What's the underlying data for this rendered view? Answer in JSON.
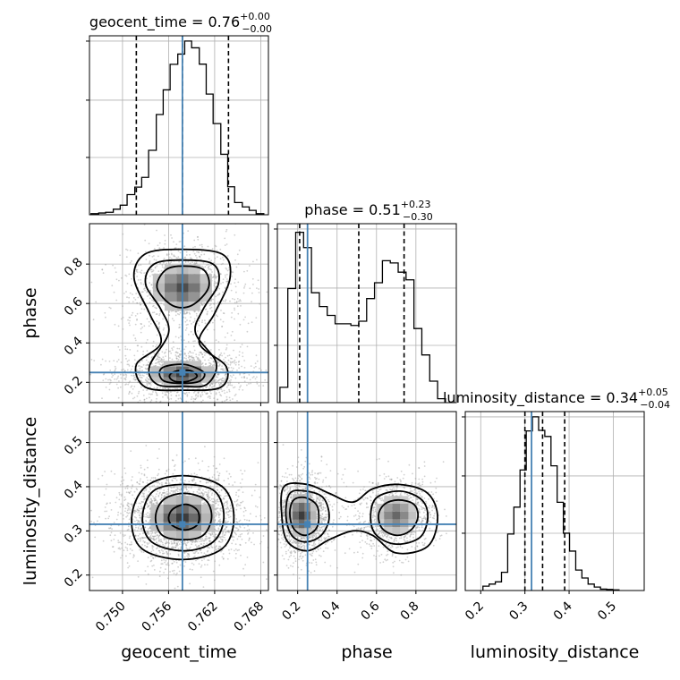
{
  "chart_data": {
    "type": "corner",
    "parameters": [
      "geocent_time",
      "phase",
      "luminosity_distance"
    ],
    "axis_labels": {
      "geocent_time": "geocent_time",
      "phase": "phase",
      "luminosity_distance": "luminosity_distance"
    },
    "ranges": {
      "geocent_time": [
        0.7457,
        0.769
      ],
      "phase": [
        0.097,
        1.005
      ],
      "luminosity_distance": [
        0.165,
        0.57
      ]
    },
    "ticks": {
      "geocent_time": [
        0.75,
        0.756,
        0.762,
        0.768
      ],
      "phase": [
        0.2,
        0.4,
        0.6,
        0.8
      ],
      "luminosity_distance": [
        0.2,
        0.3,
        0.4,
        0.5
      ]
    },
    "tick_labels": {
      "geocent_time": [
        "0.750",
        "0.756",
        "0.762",
        "0.768"
      ],
      "phase": [
        "0.2",
        "0.4",
        "0.6",
        "0.8"
      ],
      "luminosity_distance": [
        "0.2",
        "0.3",
        "0.4",
        "0.5"
      ]
    },
    "truths": {
      "geocent_time": 0.7578,
      "phase": 0.25,
      "luminosity_distance": 0.315
    },
    "titles": [
      {
        "name": "geocent_time",
        "median": "0.76",
        "plus": "+0.00",
        "minus": "−0.00"
      },
      {
        "name": "phase",
        "median": "0.51",
        "plus": "+0.23",
        "minus": "−0.30"
      },
      {
        "name": "luminosity_distance",
        "median": "0.34",
        "plus": "+0.05",
        "minus": "−0.04"
      }
    ],
    "quantiles": {
      "geocent_time": [
        0.7518,
        0.7578,
        0.7638
      ],
      "phase": [
        0.21,
        0.51,
        0.74
      ],
      "luminosity_distance": [
        0.3,
        0.34,
        0.39
      ]
    },
    "histograms": {
      "geocent_time": {
        "bin_edges": [
          0.7459,
          0.7469,
          0.7478,
          0.7488,
          0.7497,
          0.7506,
          0.7516,
          0.7525,
          0.7534,
          0.7544,
          0.7553,
          0.7562,
          0.7572,
          0.7581,
          0.759,
          0.76,
          0.7609,
          0.7618,
          0.7628,
          0.7637,
          0.7646,
          0.7656,
          0.7665,
          0.7674,
          0.7684
        ],
        "counts": [
          0.006,
          0.01,
          0.014,
          0.032,
          0.055,
          0.116,
          0.159,
          0.215,
          0.371,
          0.577,
          0.719,
          0.866,
          0.925,
          1.0,
          0.961,
          0.867,
          0.695,
          0.525,
          0.348,
          0.161,
          0.07,
          0.045,
          0.025,
          0.006
        ]
      },
      "phase": {
        "bin_edges": [
          0.11,
          0.15,
          0.19,
          0.23,
          0.27,
          0.31,
          0.35,
          0.39,
          0.43,
          0.47,
          0.51,
          0.55,
          0.59,
          0.63,
          0.67,
          0.71,
          0.75,
          0.79,
          0.83,
          0.87,
          0.91,
          0.95
        ],
        "counts": [
          0.09,
          0.67,
          1.0,
          0.91,
          0.645,
          0.564,
          0.512,
          0.463,
          0.463,
          0.453,
          0.478,
          0.611,
          0.704,
          0.833,
          0.82,
          0.766,
          0.721,
          0.435,
          0.28,
          0.126,
          0.023
        ],
        "display_max": 1.04
      },
      "luminosity_distance": {
        "bin_edges": [
          0.205,
          0.219,
          0.233,
          0.247,
          0.261,
          0.275,
          0.289,
          0.303,
          0.317,
          0.331,
          0.345,
          0.359,
          0.373,
          0.387,
          0.401,
          0.415,
          0.429,
          0.443,
          0.457,
          0.471,
          0.485,
          0.499,
          0.513
        ],
        "counts": [
          0.025,
          0.037,
          0.05,
          0.105,
          0.325,
          0.48,
          0.694,
          0.919,
          1.0,
          0.922,
          0.887,
          0.718,
          0.508,
          0.33,
          0.227,
          0.118,
          0.072,
          0.037,
          0.02,
          0.008,
          0.006,
          0.004
        ]
      }
    },
    "density_clusters": {
      "phase_vs_geocent_time": [
        {
          "x": 0.7578,
          "y": 0.68,
          "sx": 0.0028,
          "sy": 0.085,
          "w": 0.9
        },
        {
          "x": 0.7578,
          "y": 0.24,
          "sx": 0.003,
          "sy": 0.05,
          "w": 1.0
        }
      ],
      "luminosity_distance_vs_geocent_time": [
        {
          "x": 0.7578,
          "y": 0.33,
          "sx": 0.003,
          "sy": 0.036,
          "w": 1.0
        }
      ],
      "luminosity_distance_vs_phase": [
        {
          "x": 0.22,
          "y": 0.335,
          "sx": 0.055,
          "sy": 0.035,
          "w": 1.0
        },
        {
          "x": 0.7,
          "y": 0.335,
          "sx": 0.075,
          "sy": 0.032,
          "w": 0.75
        }
      ]
    },
    "contour_levels": {
      "phase_vs_geocent_time": [
        [
          [
            0.7529,
            0.85
          ],
          [
            0.7575,
            0.875
          ],
          [
            0.763,
            0.85
          ],
          [
            0.764,
            0.73
          ],
          [
            0.762,
            0.55
          ],
          [
            0.76,
            0.4
          ],
          [
            0.7635,
            0.28
          ],
          [
            0.7628,
            0.175
          ],
          [
            0.758,
            0.16
          ],
          [
            0.753,
            0.175
          ],
          [
            0.7518,
            0.29
          ],
          [
            0.755,
            0.4
          ],
          [
            0.7535,
            0.55
          ],
          [
            0.7515,
            0.73
          ]
        ],
        [
          [
            0.7541,
            0.8
          ],
          [
            0.7578,
            0.82
          ],
          [
            0.7618,
            0.8
          ],
          [
            0.7625,
            0.7
          ],
          [
            0.7605,
            0.57
          ],
          [
            0.7595,
            0.45
          ],
          [
            0.7622,
            0.3
          ],
          [
            0.761,
            0.19
          ],
          [
            0.758,
            0.18
          ],
          [
            0.7545,
            0.19
          ],
          [
            0.7535,
            0.28
          ],
          [
            0.756,
            0.45
          ],
          [
            0.755,
            0.57
          ],
          [
            0.753,
            0.7
          ]
        ],
        [
          [
            0.7556,
            0.77
          ],
          [
            0.758,
            0.79
          ],
          [
            0.7606,
            0.77
          ],
          [
            0.7612,
            0.68
          ],
          [
            0.759,
            0.59
          ],
          [
            0.7565,
            0.59
          ],
          [
            0.7545,
            0.68
          ]
        ],
        [
          [
            0.7555,
            0.28
          ],
          [
            0.7582,
            0.29
          ],
          [
            0.7606,
            0.25
          ],
          [
            0.76,
            0.205
          ],
          [
            0.7578,
            0.195
          ],
          [
            0.7555,
            0.205
          ],
          [
            0.7548,
            0.245
          ]
        ],
        [
          [
            0.7568,
            0.255
          ],
          [
            0.7588,
            0.26
          ],
          [
            0.7597,
            0.23
          ],
          [
            0.7585,
            0.205
          ],
          [
            0.7568,
            0.205
          ],
          [
            0.7561,
            0.23
          ]
        ]
      ],
      "luminosity_distance_vs_geocent_time": [
        [
          [
            0.753,
            0.4
          ],
          [
            0.7578,
            0.425
          ],
          [
            0.763,
            0.4
          ],
          [
            0.7645,
            0.33
          ],
          [
            0.763,
            0.26
          ],
          [
            0.7578,
            0.235
          ],
          [
            0.7525,
            0.26
          ],
          [
            0.7512,
            0.33
          ]
        ],
        [
          [
            0.754,
            0.39
          ],
          [
            0.758,
            0.405
          ],
          [
            0.762,
            0.39
          ],
          [
            0.7632,
            0.33
          ],
          [
            0.7618,
            0.275
          ],
          [
            0.758,
            0.255
          ],
          [
            0.7538,
            0.275
          ],
          [
            0.7526,
            0.33
          ]
        ],
        [
          [
            0.7553,
            0.37
          ],
          [
            0.758,
            0.385
          ],
          [
            0.7608,
            0.37
          ],
          [
            0.7616,
            0.33
          ],
          [
            0.7605,
            0.29
          ],
          [
            0.758,
            0.28
          ],
          [
            0.7552,
            0.29
          ],
          [
            0.7543,
            0.33
          ]
        ],
        [
          [
            0.7566,
            0.35
          ],
          [
            0.7583,
            0.36
          ],
          [
            0.7598,
            0.345
          ],
          [
            0.7598,
            0.315
          ],
          [
            0.7582,
            0.302
          ],
          [
            0.7565,
            0.312
          ],
          [
            0.756,
            0.33
          ]
        ]
      ],
      "luminosity_distance_vs_phase": [
        [
          [
            0.13,
            0.4
          ],
          [
            0.25,
            0.405
          ],
          [
            0.36,
            0.385
          ],
          [
            0.48,
            0.365
          ],
          [
            0.58,
            0.395
          ],
          [
            0.72,
            0.405
          ],
          [
            0.86,
            0.385
          ],
          [
            0.91,
            0.33
          ],
          [
            0.86,
            0.265
          ],
          [
            0.7,
            0.25
          ],
          [
            0.58,
            0.29
          ],
          [
            0.48,
            0.3
          ],
          [
            0.36,
            0.28
          ],
          [
            0.25,
            0.255
          ],
          [
            0.15,
            0.275
          ],
          [
            0.12,
            0.33
          ]
        ],
        [
          [
            0.16,
            0.385
          ],
          [
            0.24,
            0.39
          ],
          [
            0.33,
            0.375
          ],
          [
            0.36,
            0.33
          ],
          [
            0.32,
            0.29
          ],
          [
            0.24,
            0.275
          ],
          [
            0.17,
            0.29
          ],
          [
            0.14,
            0.335
          ]
        ],
        [
          [
            0.6,
            0.375
          ],
          [
            0.72,
            0.39
          ],
          [
            0.83,
            0.37
          ],
          [
            0.86,
            0.33
          ],
          [
            0.82,
            0.285
          ],
          [
            0.7,
            0.27
          ],
          [
            0.6,
            0.29
          ],
          [
            0.57,
            0.33
          ]
        ],
        [
          [
            0.18,
            0.37
          ],
          [
            0.24,
            0.375
          ],
          [
            0.3,
            0.355
          ],
          [
            0.3,
            0.31
          ],
          [
            0.24,
            0.29
          ],
          [
            0.18,
            0.305
          ],
          [
            0.16,
            0.34
          ]
        ],
        [
          [
            0.64,
            0.36
          ],
          [
            0.71,
            0.37
          ],
          [
            0.79,
            0.36
          ],
          [
            0.81,
            0.33
          ],
          [
            0.77,
            0.3
          ],
          [
            0.7,
            0.29
          ],
          [
            0.63,
            0.305
          ],
          [
            0.61,
            0.335
          ]
        ]
      ]
    }
  }
}
